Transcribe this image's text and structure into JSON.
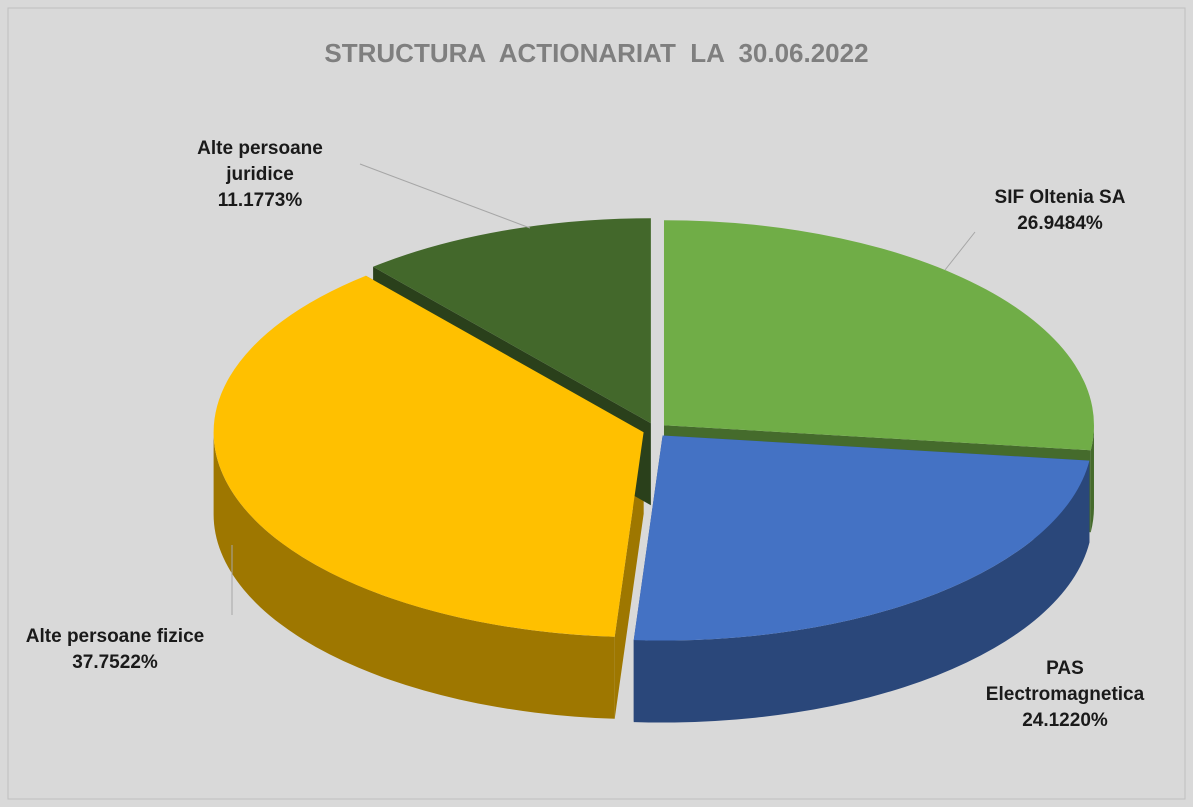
{
  "chart_data": {
    "type": "pie",
    "title": "STRUCTURA  ACTIONARIAT  LA  30.06.2022",
    "categories": [
      "SIF Oltenia SA",
      "PAS Electromagnetica",
      "Alte persoane fizice",
      "Alte persoane juridice"
    ],
    "values": [
      26.9484,
      24.122,
      37.7522,
      11.1773
    ],
    "value_labels": [
      "26.9484%",
      "24.1220%",
      "37.7522%",
      "11.1773%"
    ],
    "colors": [
      "#70ad47",
      "#4472c4",
      "#ffc000",
      "#43682b"
    ]
  }
}
